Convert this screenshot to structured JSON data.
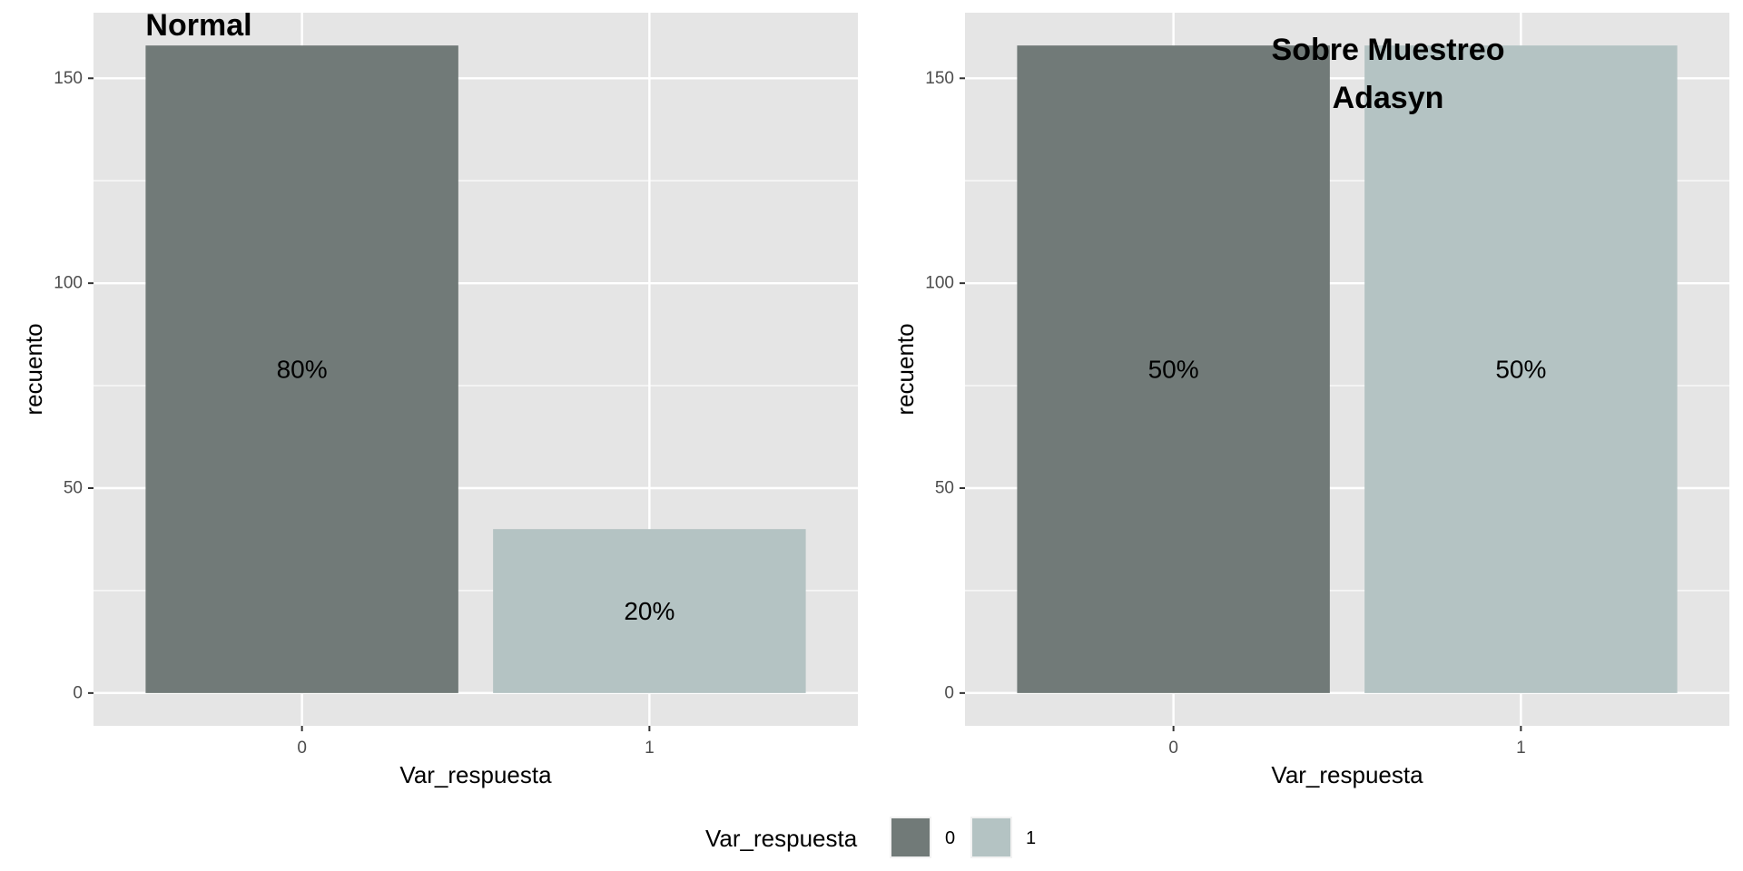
{
  "chart_data": [
    {
      "type": "bar",
      "title": "Normal",
      "categories": [
        "0",
        "1"
      ],
      "values": [
        158,
        40
      ],
      "data_labels": [
        "80%",
        "20%"
      ],
      "xlabel": "Var_respuesta",
      "ylabel": "recuento",
      "ylim": [
        -8,
        166
      ],
      "yticks": [
        0,
        50,
        100,
        150
      ],
      "grid": true,
      "colors": [
        "#717a78",
        "#b4c3c3"
      ]
    },
    {
      "type": "bar",
      "title": [
        "Sobre Muestreo",
        "Adasyn"
      ],
      "categories": [
        "0",
        "1"
      ],
      "values": [
        158,
        158
      ],
      "data_labels": [
        "50%",
        "50%"
      ],
      "xlabel": "Var_respuesta",
      "ylabel": "recuento",
      "ylim": [
        -8,
        166
      ],
      "yticks": [
        0,
        50,
        100,
        150
      ],
      "grid": true,
      "colors": [
        "#717a78",
        "#b4c3c3"
      ]
    }
  ],
  "legend": {
    "title": "Var_respuesta",
    "placement": "bottom",
    "items": [
      {
        "label": "0",
        "color": "#717a78"
      },
      {
        "label": "1",
        "color": "#b4c3c3"
      }
    ]
  },
  "panel_background": "#e5e5e5",
  "grid_color": "#ffffff"
}
